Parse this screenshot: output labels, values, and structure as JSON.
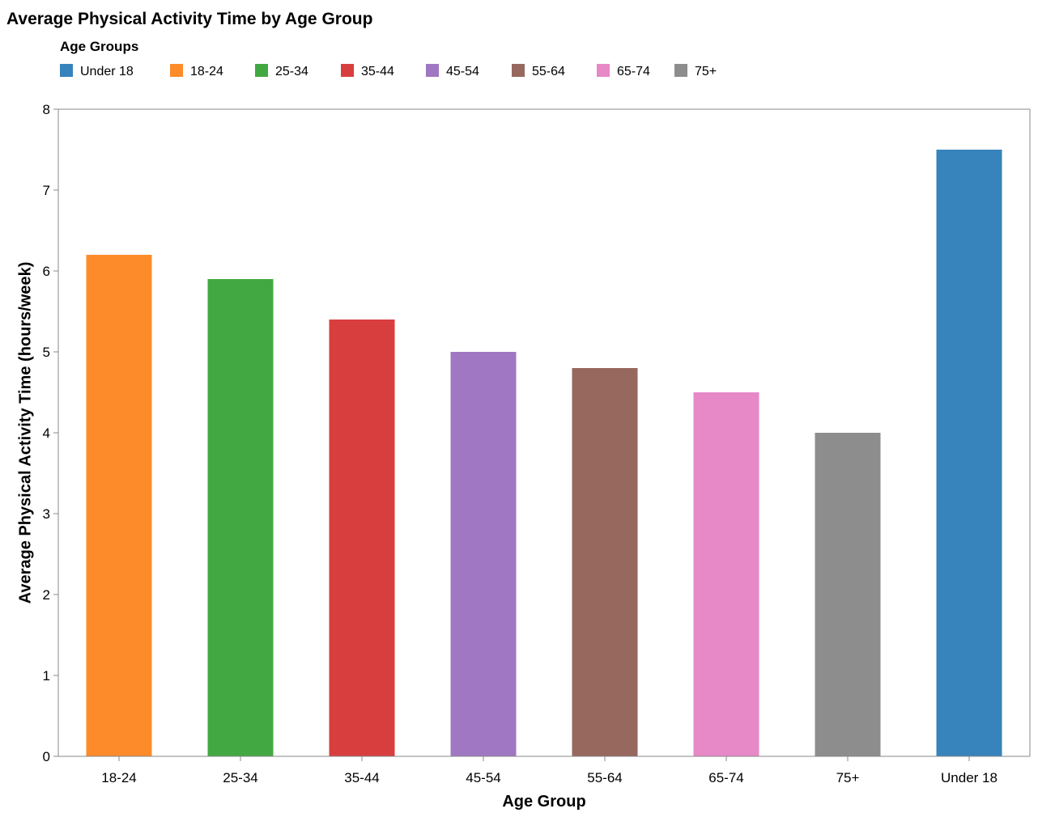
{
  "chart_data": {
    "type": "bar",
    "title": "Average Physical Activity Time by Age Group",
    "xlabel": "Age Group",
    "ylabel": "Average Physical Activity Time (hours/week)",
    "ylim": [
      0,
      8
    ],
    "yticks": [
      0,
      1,
      2,
      3,
      4,
      5,
      6,
      7,
      8
    ],
    "grid": false,
    "legend": {
      "title": "Age Groups",
      "placement": "top-left",
      "entries": [
        {
          "label": "Under 18",
          "color": "#3783bb"
        },
        {
          "label": "18-24",
          "color": "#fd8b2a"
        },
        {
          "label": "25-34",
          "color": "#42a942"
        },
        {
          "label": "35-44",
          "color": "#d93e3f"
        },
        {
          "label": "45-54",
          "color": "#a077c2"
        },
        {
          "label": "55-64",
          "color": "#97685e"
        },
        {
          "label": "65-74",
          "color": "#e788c7"
        },
        {
          "label": "75+",
          "color": "#8d8d8d"
        }
      ]
    },
    "categories": [
      "18-24",
      "25-34",
      "35-44",
      "45-54",
      "55-64",
      "65-74",
      "75+",
      "Under 18"
    ],
    "values": [
      6.2,
      5.9,
      5.4,
      5.0,
      4.8,
      4.5,
      4.0,
      7.5
    ],
    "colors": [
      "#fd8b2a",
      "#42a942",
      "#d93e3f",
      "#a077c2",
      "#97685e",
      "#e788c7",
      "#8d8d8d",
      "#3783bb"
    ]
  }
}
